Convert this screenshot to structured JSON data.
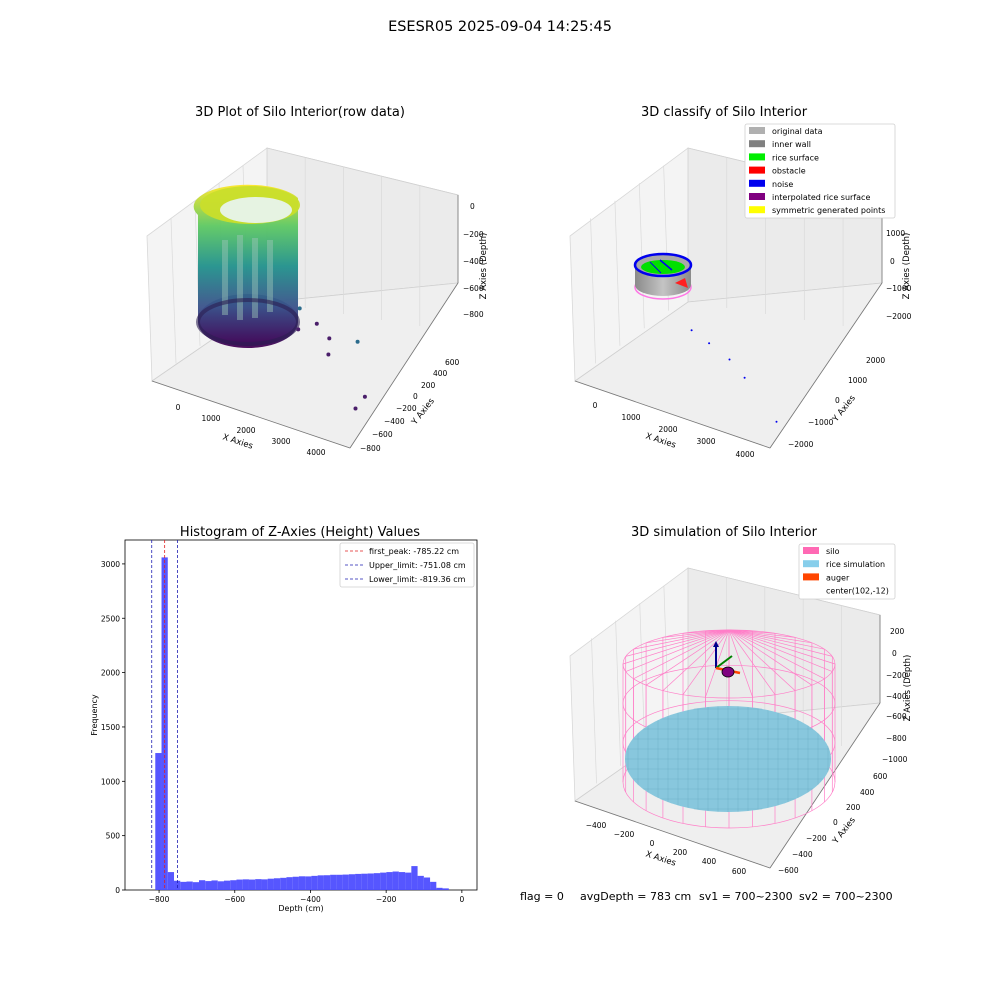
{
  "figure": {
    "suptitle": "ESESR05 2025-09-04 14:25:45",
    "footer": {
      "flag": "flag = 0",
      "avg_depth": "avgDepth = 783 cm",
      "sv1": "sv1 = 700~2300",
      "sv2": "sv2 = 700~2300"
    }
  },
  "chart_data": [
    {
      "id": "raw",
      "type": "scatter",
      "title": "3D Plot of Silo Interior(row data)",
      "xlabel": "X Axies",
      "ylabel": "Y Axies",
      "zlabel": "Z Axies (Depth)",
      "xticks": [
        "0",
        "1000",
        "2000",
        "3000",
        "4000"
      ],
      "yticks": [
        "600",
        "400",
        "200",
        "0",
        "−200",
        "−400",
        "−600",
        "−800"
      ],
      "zticks": [
        "0",
        "−200",
        "−400",
        "−600",
        "−800"
      ],
      "xlim": [
        -500,
        4500
      ],
      "ylim": [
        -900,
        700
      ],
      "zlim": [
        -1000,
        50
      ],
      "colormap": "viridis",
      "outlier_points": [
        {
          "x": 1200,
          "y": 300,
          "z": -700
        },
        {
          "x": 1500,
          "y": 100,
          "z": -760
        },
        {
          "x": 1800,
          "y": 200,
          "z": -720
        },
        {
          "x": 2200,
          "y": 150,
          "z": -780
        },
        {
          "x": 2600,
          "y": -100,
          "z": -760
        },
        {
          "x": 3000,
          "y": 100,
          "z": -690
        },
        {
          "x": 4200,
          "y": -500,
          "z": -760
        },
        {
          "x": 4300,
          "y": -700,
          "z": -760
        }
      ]
    },
    {
      "id": "classify",
      "type": "scatter",
      "title": "3D classify of Silo Interior",
      "xlabel": "X Axies",
      "ylabel": "Y Axies",
      "zlabel": "Z Axies (Depth)",
      "xticks": [
        "0",
        "1000",
        "2000",
        "3000",
        "4000"
      ],
      "yticks": [
        "2000",
        "1000",
        "0",
        "−1000",
        "−2000"
      ],
      "zticks": [
        "1000",
        "0",
        "−1000",
        "−2000"
      ],
      "legend_position": "upper right",
      "legend": [
        {
          "label": "original data",
          "color": "#b0b0b0"
        },
        {
          "label": "inner wall",
          "color": "#808080"
        },
        {
          "label": "rice surface",
          "color": "#00ee00"
        },
        {
          "label": "obstacle",
          "color": "#ff0000"
        },
        {
          "label": "noise",
          "color": "#0000ee"
        },
        {
          "label": "interpolated rice surface",
          "color": "#800080"
        },
        {
          "label": "symmetric generated points",
          "color": "#ffff00"
        }
      ],
      "noise_points": [
        {
          "x": 1700,
          "y": 400,
          "z": -700
        },
        {
          "x": 2200,
          "y": 200,
          "z": -760
        },
        {
          "x": 2800,
          "y": -100,
          "z": -750
        },
        {
          "x": 3300,
          "y": -500,
          "z": -780
        },
        {
          "x": 4400,
          "y": -1500,
          "z": -900
        }
      ]
    },
    {
      "id": "histogram",
      "type": "bar",
      "title": "Histogram of Z-Axies (Height) Values",
      "xlabel": "Depth (cm)",
      "ylabel": "Frequency",
      "xlim": [
        -890,
        40
      ],
      "ylim": [
        0,
        3220
      ],
      "xticks": [
        -800,
        -600,
        -400,
        -200,
        0
      ],
      "xtick_labels": [
        "−800",
        "−600",
        "−400",
        "−200",
        "0"
      ],
      "yticks": [
        0,
        500,
        1000,
        1500,
        2000,
        2500,
        3000
      ],
      "ytick_labels": [
        "0",
        "500",
        "1000",
        "1500",
        "2000",
        "2500",
        "3000"
      ],
      "bar_color": "#4d4dff",
      "bin_width": 16.5,
      "bin_start": -810,
      "values": [
        1260,
        3060,
        165,
        85,
        75,
        78,
        72,
        90,
        82,
        88,
        80,
        86,
        90,
        96,
        98,
        96,
        100,
        98,
        104,
        108,
        112,
        118,
        122,
        126,
        125,
        130,
        135,
        136,
        140,
        140,
        142,
        145,
        148,
        150,
        152,
        155,
        160,
        165,
        170,
        165,
        160,
        220,
        130,
        115,
        75,
        20,
        15
      ],
      "vlines": [
        {
          "label": "first_peak: -785.22 cm",
          "x": -785.22,
          "color": "#e02020"
        },
        {
          "label": "Upper_limit: -751.08 cm",
          "x": -751.08,
          "color": "#1e1eb4"
        },
        {
          "label": "Lower_limit: -819.36 cm",
          "x": -819.36,
          "color": "#1e1eb4"
        }
      ],
      "legend_position": "upper right"
    },
    {
      "id": "simulation",
      "type": "scatter",
      "title": "3D simulation of Silo Interior",
      "xlabel": "X Axies",
      "ylabel": "Y Axies",
      "zlabel": "Z Axies (Depth)",
      "xticks": [
        "−400",
        "−200",
        "0",
        "200",
        "400",
        "600"
      ],
      "yticks": [
        "600",
        "400",
        "200",
        "0",
        "−200",
        "−400",
        "−600"
      ],
      "zticks": [
        "200",
        "0",
        "−200",
        "−400",
        "−600",
        "−800",
        "−1000"
      ],
      "legend_position": "upper right",
      "legend": [
        {
          "label": "silo",
          "color": "#ff69b4"
        },
        {
          "label": "rice simulation",
          "color": "#87ceeb"
        },
        {
          "label": "auger",
          "color": "#ff4500"
        },
        {
          "label": "center(102,-12)",
          "color": ""
        }
      ]
    }
  ]
}
